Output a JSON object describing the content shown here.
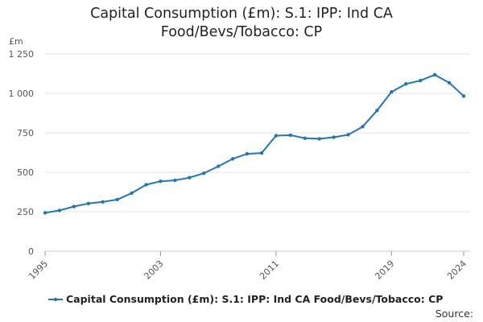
{
  "chart_data": {
    "type": "line",
    "title_lines": [
      "Capital Consumption (£m): S.1: IPP: Ind CA",
      "Food/Bevs/Tobacco: CP"
    ],
    "ylabel": "£m",
    "xlabel": "",
    "ylim": [
      0,
      1250
    ],
    "xlim": [
      1995,
      2024
    ],
    "y_ticks": [
      0,
      250,
      500,
      750,
      1000,
      1250
    ],
    "y_tick_labels": [
      "0",
      "250",
      "500",
      "750",
      "1 000",
      "1 250"
    ],
    "x_ticks": [
      1995,
      2003,
      2011,
      2019,
      2024
    ],
    "x_tick_labels": [
      "1995",
      "2003",
      "2011",
      "2019",
      "2024"
    ],
    "grid": true,
    "series": [
      {
        "name": "Capital Consumption (£m): S.1: IPP: Ind CA Food/Bevs/Tobacco: CP",
        "color": "#1f77b4",
        "x": [
          1995,
          1996,
          1997,
          1998,
          1999,
          2000,
          2001,
          2002,
          2003,
          2004,
          2005,
          2006,
          2007,
          2008,
          2009,
          2010,
          2011,
          2012,
          2013,
          2014,
          2015,
          2016,
          2017,
          2018,
          2019,
          2020,
          2021,
          2022,
          2023,
          2024
        ],
        "values": [
          243,
          258,
          283,
          302,
          312,
          327,
          368,
          421,
          443,
          449,
          466,
          494,
          538,
          585,
          617,
          622,
          732,
          735,
          716,
          712,
          722,
          738,
          789,
          892,
          1009,
          1060,
          1081,
          1118,
          1067,
          983
        ]
      }
    ],
    "source_label": "Source:"
  }
}
